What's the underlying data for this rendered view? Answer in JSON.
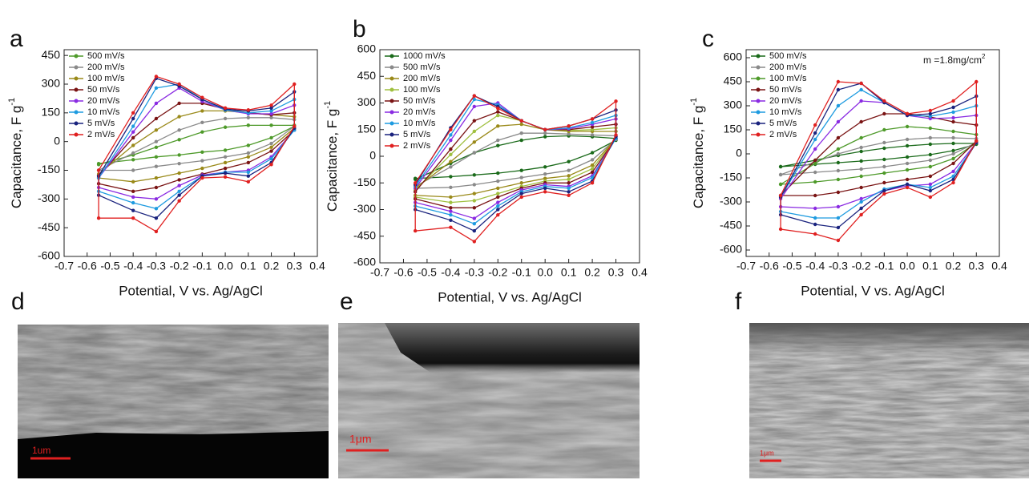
{
  "chart_data": [
    {
      "type": "line",
      "panel": "a",
      "x_label": "Potential, V vs. Ag/AgCl",
      "y_label": "Capacitance, F g",
      "y_label_superscript": "-1",
      "xlim": [
        -0.7,
        0.4
      ],
      "xticks": [
        -0.7,
        -0.6,
        -0.5,
        -0.4,
        -0.3,
        -0.2,
        -0.1,
        {
          "value": 0,
          "label": "0.0"
        },
        0.1,
        0.2,
        0.3,
        0.4
      ],
      "ylim": [
        -600,
        480
      ],
      "yticks": [
        -600,
        -450,
        -300,
        -150,
        0,
        150,
        300,
        450
      ],
      "legend": "upper left",
      "x": [
        -0.55,
        -0.4,
        -0.3,
        -0.2,
        -0.1,
        0,
        0.1,
        0.2,
        0.3,
        0.3,
        0.2,
        0.1,
        0,
        -0.1,
        -0.2,
        -0.3,
        -0.4,
        -0.55
      ],
      "series": [
        {
          "name": "500 mV/s",
          "color": "#4e9a2a",
          "values": [
            -120,
            -70,
            -30,
            10,
            50,
            75,
            85,
            85,
            85,
            80,
            20,
            -20,
            -45,
            -55,
            -70,
            -80,
            -95,
            -115
          ]
        },
        {
          "name": "200 mV/s",
          "color": "#8a8a8a",
          "values": [
            -150,
            -60,
            0,
            60,
            100,
            120,
            125,
            125,
            115,
            80,
            -10,
            -60,
            -80,
            -100,
            -115,
            -130,
            -150,
            -150
          ]
        },
        {
          "name": "100 mV/s",
          "color": "#9a8a1a",
          "values": [
            -170,
            -20,
            60,
            130,
            160,
            160,
            150,
            140,
            130,
            70,
            -30,
            -80,
            -110,
            -140,
            -165,
            -190,
            -210,
            -190
          ]
        },
        {
          "name": "50 mV/s",
          "color": "#7a1414",
          "values": [
            -180,
            20,
            120,
            200,
            200,
            170,
            150,
            140,
            150,
            60,
            -50,
            -110,
            -140,
            -170,
            -200,
            -240,
            -260,
            -220
          ]
        },
        {
          "name": "20 mV/s",
          "color": "#8a2be2",
          "values": [
            -190,
            50,
            200,
            280,
            210,
            165,
            145,
            145,
            190,
            60,
            -80,
            -150,
            -160,
            -175,
            -230,
            -300,
            -290,
            -240
          ]
        },
        {
          "name": "10 mV/s",
          "color": "#1e9be0",
          "values": [
            -190,
            80,
            280,
            300,
            220,
            165,
            150,
            160,
            220,
            60,
            -90,
            -160,
            -160,
            -180,
            -260,
            -350,
            -320,
            -260
          ]
        },
        {
          "name": "5 mV/s",
          "color": "#1a237e",
          "values": [
            -180,
            120,
            330,
            290,
            220,
            170,
            160,
            175,
            260,
            70,
            -110,
            -180,
            -165,
            -180,
            -280,
            -400,
            -360,
            -280
          ]
        },
        {
          "name": "2 mV/s",
          "color": "#e02020",
          "values": [
            -150,
            150,
            340,
            300,
            230,
            175,
            165,
            190,
            300,
            80,
            -120,
            -210,
            -185,
            -190,
            -310,
            -470,
            -400,
            -400
          ]
        }
      ]
    },
    {
      "type": "line",
      "panel": "b",
      "x_label": "Potential, V vs. Ag/AgCl",
      "y_label": "Capacitance, F g",
      "y_label_superscript": "-1",
      "xlim": [
        -0.7,
        0.4
      ],
      "xticks": [
        -0.7,
        -0.6,
        -0.5,
        -0.4,
        -0.3,
        -0.2,
        -0.1,
        {
          "value": 0,
          "label": "0.0"
        },
        0.1,
        0.2,
        0.3,
        0.4
      ],
      "ylim": [
        -600,
        600
      ],
      "yticks": [
        -600,
        -450,
        -300,
        -150,
        0,
        150,
        300,
        450,
        600
      ],
      "legend": "upper left",
      "x": [
        -0.55,
        -0.4,
        -0.3,
        -0.2,
        -0.1,
        0,
        0.1,
        0.2,
        0.3,
        0.3,
        0.2,
        0.1,
        0,
        -0.1,
        -0.2,
        -0.3,
        -0.4,
        -0.55
      ],
      "series": [
        {
          "name": "1000 mV/s",
          "color": "#1a6a1a",
          "values": [
            -130,
            -40,
            20,
            60,
            90,
            110,
            115,
            110,
            100,
            90,
            20,
            -30,
            -60,
            -80,
            -95,
            -105,
            -115,
            -125
          ]
        },
        {
          "name": "500 mV/s",
          "color": "#8a8a8a",
          "values": [
            -170,
            -60,
            20,
            90,
            130,
            130,
            125,
            120,
            115,
            95,
            -20,
            -80,
            -100,
            -120,
            -140,
            -160,
            -175,
            -180
          ]
        },
        {
          "name": "200 mV/s",
          "color": "#9a8a1a",
          "values": [
            -180,
            -30,
            80,
            170,
            180,
            150,
            140,
            140,
            140,
            100,
            -50,
            -110,
            -125,
            -150,
            -180,
            -210,
            -230,
            -220
          ]
        },
        {
          "name": "100 mV/s",
          "color": "#a0c040",
          "values": [
            -190,
            10,
            140,
            230,
            200,
            150,
            145,
            150,
            160,
            100,
            -70,
            -130,
            -140,
            -170,
            -210,
            -250,
            -260,
            -230
          ]
        },
        {
          "name": "50 mV/s",
          "color": "#7a1414",
          "values": [
            -200,
            40,
            200,
            250,
            200,
            150,
            150,
            165,
            180,
            100,
            -90,
            -150,
            -150,
            -180,
            -230,
            -290,
            -290,
            -240
          ]
        },
        {
          "name": "20 mV/s",
          "color": "#8a2be2",
          "values": [
            -180,
            90,
            280,
            300,
            200,
            150,
            155,
            180,
            210,
            100,
            -110,
            -170,
            -160,
            -190,
            -260,
            -350,
            -310,
            -260
          ]
        },
        {
          "name": "10 mV/s",
          "color": "#1e9be0",
          "values": [
            -170,
            120,
            320,
            290,
            200,
            150,
            160,
            190,
            230,
            100,
            -120,
            -180,
            -170,
            -200,
            -280,
            -380,
            -330,
            -280
          ]
        },
        {
          "name": "5 mV/s",
          "color": "#1a237e",
          "values": [
            -160,
            160,
            340,
            280,
            200,
            150,
            170,
            210,
            260,
            110,
            -140,
            -200,
            -180,
            -210,
            -300,
            -420,
            -360,
            -300
          ]
        },
        {
          "name": "2 mV/s",
          "color": "#e02020",
          "values": [
            -150,
            150,
            340,
            270,
            200,
            150,
            170,
            210,
            310,
            120,
            -150,
            -220,
            -200,
            -230,
            -330,
            -480,
            -400,
            -420
          ]
        }
      ]
    },
    {
      "type": "line",
      "panel": "c",
      "x_label": "Potential, V vs. Ag/AgCl",
      "y_label": "Capacitance, F g",
      "y_label_superscript": "-1",
      "annotation": "m =1.8mg/cm",
      "annotation_superscript": "2",
      "xlim": [
        -0.7,
        0.4
      ],
      "xticks": [
        -0.7,
        -0.6,
        -0.5,
        -0.4,
        -0.3,
        -0.2,
        -0.1,
        {
          "value": 0,
          "label": "0.0"
        },
        0.1,
        0.2,
        0.3,
        0.4
      ],
      "ylim": [
        -640,
        650
      ],
      "yticks": [
        -600,
        -450,
        -300,
        -150,
        0,
        150,
        300,
        450,
        600
      ],
      "legend": "upper left",
      "x": [
        -0.55,
        -0.4,
        -0.3,
        -0.2,
        -0.1,
        0,
        0.1,
        0.2,
        0.3,
        0.3,
        0.2,
        0.1,
        0,
        -0.1,
        -0.2,
        -0.3,
        -0.4,
        -0.55
      ],
      "series": [
        {
          "name": "500 mV/s",
          "color": "#1a6a1a",
          "values": [
            -80,
            -40,
            -10,
            15,
            35,
            50,
            60,
            65,
            65,
            60,
            20,
            -5,
            -20,
            -35,
            -45,
            -55,
            -65,
            -80
          ]
        },
        {
          "name": "200 mV/s",
          "color": "#8a8a8a",
          "values": [
            -130,
            -50,
            0,
            40,
            70,
            90,
            100,
            100,
            95,
            70,
            0,
            -40,
            -60,
            -80,
            -95,
            -105,
            -115,
            -130
          ]
        },
        {
          "name": "100 mV/s",
          "color": "#4e9a2a",
          "values": [
            -190,
            -60,
            30,
            100,
            150,
            170,
            160,
            140,
            120,
            70,
            -30,
            -80,
            -100,
            -120,
            -140,
            -160,
            -175,
            -190
          ]
        },
        {
          "name": "50 mV/s",
          "color": "#7a1414",
          "values": [
            -260,
            -40,
            100,
            200,
            250,
            250,
            230,
            200,
            180,
            80,
            -60,
            -140,
            -160,
            -180,
            -210,
            -240,
            -260,
            -260
          ]
        },
        {
          "name": "20 mV/s",
          "color": "#8a2be2",
          "values": [
            -280,
            30,
            200,
            330,
            320,
            240,
            220,
            225,
            240,
            70,
            -110,
            -190,
            -200,
            -230,
            -280,
            -330,
            -340,
            -330
          ]
        },
        {
          "name": "10 mV/s",
          "color": "#1e9be0",
          "values": [
            -270,
            90,
            300,
            400,
            320,
            240,
            235,
            260,
            300,
            70,
            -140,
            -210,
            -190,
            -220,
            -300,
            -400,
            -400,
            -360
          ]
        },
        {
          "name": "5 mV/s",
          "color": "#1a237e",
          "values": [
            -270,
            130,
            400,
            440,
            320,
            240,
            250,
            290,
            360,
            70,
            -160,
            -230,
            -190,
            -230,
            -340,
            -460,
            -440,
            -380
          ]
        },
        {
          "name": "2 mV/s",
          "color": "#e02020",
          "values": [
            -260,
            180,
            450,
            440,
            330,
            250,
            270,
            330,
            450,
            80,
            -180,
            -270,
            -210,
            -250,
            -380,
            -540,
            -500,
            -470
          ]
        }
      ]
    }
  ],
  "images": [
    {
      "panel": "d",
      "scale_bar": "1um"
    },
    {
      "panel": "e",
      "scale_bar": "1μm"
    },
    {
      "panel": "f",
      "scale_bar": "1μm"
    }
  ]
}
